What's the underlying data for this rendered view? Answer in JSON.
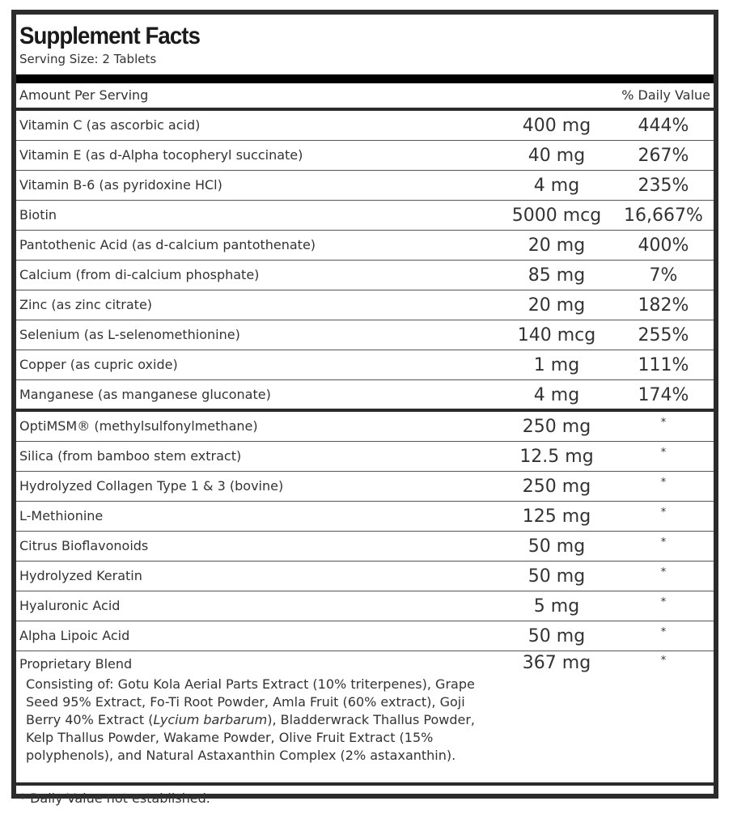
{
  "title": "Supplement Facts",
  "serving_size": "Serving Size: 2 Tablets",
  "header": {
    "amount_per_serving": "Amount Per Serving",
    "daily_value": "% Daily Value"
  },
  "nutrients": [
    {
      "name": "Vitamin C (as ascorbic acid)",
      "amount": "400 mg",
      "dv": "444%"
    },
    {
      "name": "Vitamin E (as d-Alpha tocopheryl succinate)",
      "amount": "40 mg",
      "dv": "267%"
    },
    {
      "name": "Vitamin B-6 (as pyridoxine HCl)",
      "amount": "4 mg",
      "dv": "235%"
    },
    {
      "name": "Biotin",
      "amount": "5000 mcg",
      "dv": "16,667%"
    },
    {
      "name": "Pantothenic Acid (as d-calcium pantothenate)",
      "amount": "20 mg",
      "dv": "400%"
    },
    {
      "name": "Calcium (from di-calcium phosphate)",
      "amount": "85 mg",
      "dv": "7%"
    },
    {
      "name": "Zinc (as zinc citrate)",
      "amount": "20 mg",
      "dv": "182%"
    },
    {
      "name": "Selenium (as L-selenomethionine)",
      "amount": "140 mcg",
      "dv": "255%"
    },
    {
      "name": "Copper (as cupric oxide)",
      "amount": "1 mg",
      "dv": "111%"
    },
    {
      "name": "Manganese (as manganese gluconate)",
      "amount": "4 mg",
      "dv": "174%"
    }
  ],
  "other_ingredients": [
    {
      "name": "OptiMSM® (methylsulfonylmethane)",
      "amount": "250 mg",
      "dv": "*"
    },
    {
      "name": "Silica (from bamboo stem extract)",
      "amount": "12.5 mg",
      "dv": "*"
    },
    {
      "name": "Hydrolyzed Collagen Type 1 & 3 (bovine)",
      "amount": "250 mg",
      "dv": "*"
    },
    {
      "name": "L-Methionine",
      "amount": "125 mg",
      "dv": "*"
    },
    {
      "name": "Citrus Bioflavonoids",
      "amount": "50 mg",
      "dv": "*"
    },
    {
      "name": "Hydrolyzed Keratin",
      "amount": "50 mg",
      "dv": "*"
    },
    {
      "name": "Hyaluronic Acid",
      "amount": "5 mg",
      "dv": "*"
    },
    {
      "name": "Alpha Lipoic Acid",
      "amount": "50 mg",
      "dv": "*"
    }
  ],
  "proprietary_blend": {
    "name": "Proprietary Blend",
    "amount": "367 mg",
    "dv": "*",
    "description": [
      "Consisting of: Gotu Kola Aerial Parts Extract (10% triterpenes), Grape Seed 95% Extract, Fo-Ti Root Powder, Amla Fruit (60% extract), Goji Berry 40% Extract (",
      "Lycium barbarum",
      "), Bladderwrack Thallus Powder, Kelp Thallus Powder, Wakame Powder, Olive Fruit Extract (15% polyphenols), and Natural Astaxanthin Complex (2% astaxanthin)."
    ]
  },
  "footnote": "* Daily Value not established."
}
